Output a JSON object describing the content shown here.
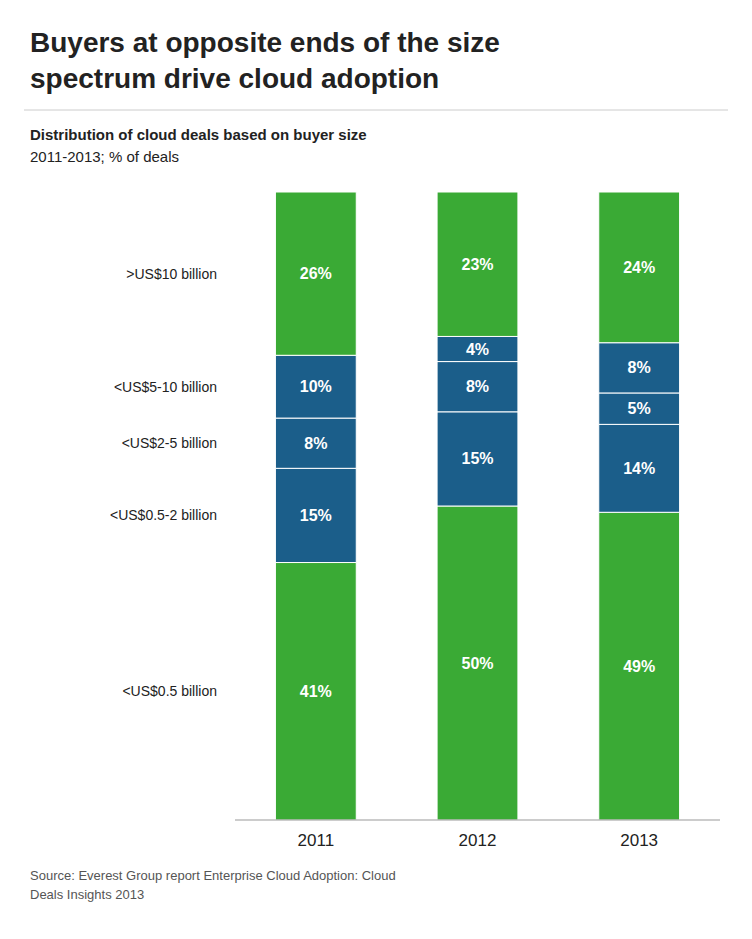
{
  "chart_data": {
    "type": "bar",
    "stacked": true,
    "title": "Buyers at opposite ends of the size\nspectrum drive cloud adoption",
    "subtitle": "Distribution of cloud deals based on buyer size\n2011-2013; % of deals",
    "source": "Source: Everest Group report Enterprise Cloud Adoption: Cloud\nDeals Insights 2013",
    "categories": [
      "2011",
      "2012",
      "2013"
    ],
    "series": [
      {
        "name": "<US$0.5 billion",
        "color": "#3aaa35",
        "values": [
          41,
          50,
          49
        ],
        "value_labels": [
          "41%",
          "50%",
          "49%"
        ]
      },
      {
        "name": "<US$0.5-2 billion",
        "color": "#1b5e8a",
        "values": [
          15,
          15,
          14
        ],
        "value_labels": [
          "15%",
          "15%",
          "14%"
        ]
      },
      {
        "name": "<US$2-5 billion",
        "color": "#1b5e8a",
        "values": [
          8,
          8,
          5
        ],
        "value_labels": [
          "8%",
          "8%",
          "5%"
        ]
      },
      {
        "name": "<US$5-10 billion",
        "color": "#1b5e8a",
        "values": [
          10,
          4,
          8
        ],
        "value_labels": [
          "10%",
          "4%",
          "8%"
        ]
      },
      {
        "name": ">US$10 billion",
        "color": "#3aaa35",
        "values": [
          26,
          23,
          24
        ],
        "value_labels": [
          "26%",
          "23%",
          "24%"
        ]
      }
    ],
    "ylim": [
      0,
      100
    ],
    "data_labels": true,
    "tick_labels": "x"
  }
}
